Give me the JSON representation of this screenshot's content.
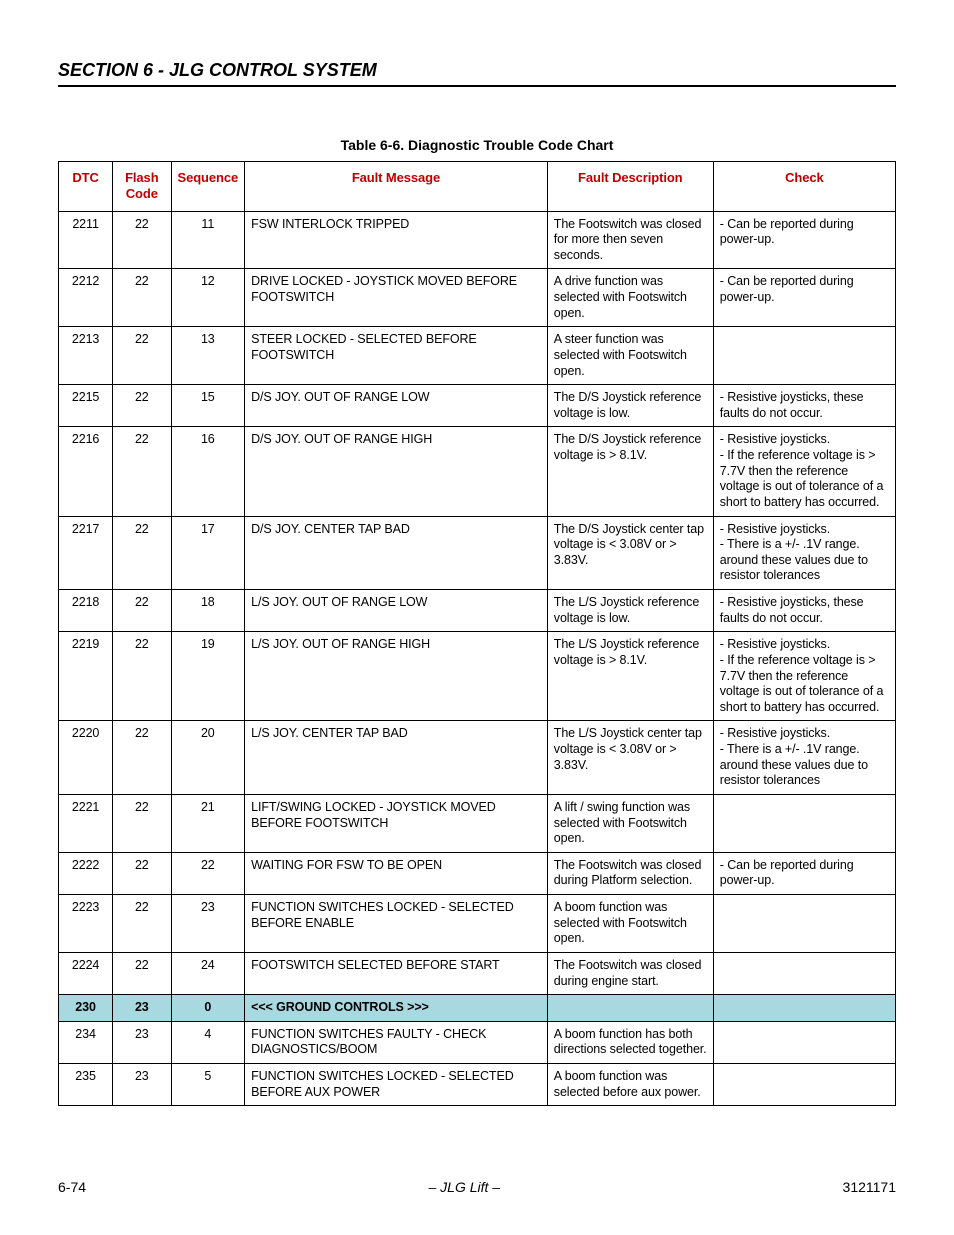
{
  "header": {
    "section_title": "SECTION 6 - JLG CONTROL SYSTEM"
  },
  "table": {
    "caption": "Table 6-6. Diagnostic Trouble Code Chart",
    "columns": {
      "dtc": "DTC",
      "flash": "Flash Code",
      "seq": "Sequence",
      "msg": "Fault Message",
      "desc": "Fault Description",
      "check": "Check"
    },
    "rows": [
      {
        "dtc": "2211",
        "flash": "22",
        "seq": "11",
        "msg": "FSW INTERLOCK TRIPPED",
        "desc": "The Footswitch was closed for more then seven seconds.",
        "check": "- Can be reported during power-up."
      },
      {
        "dtc": "2212",
        "flash": "22",
        "seq": "12",
        "msg": "DRIVE LOCKED - JOYSTICK MOVED BEFORE FOOTSWITCH",
        "desc": "A drive function was selected with Footswitch open.",
        "check": "- Can be reported during power-up."
      },
      {
        "dtc": "2213",
        "flash": "22",
        "seq": "13",
        "msg": "STEER LOCKED - SELECTED BEFORE FOOTSWITCH",
        "desc": "A steer function was selected with Footswitch open.",
        "check": ""
      },
      {
        "dtc": "2215",
        "flash": "22",
        "seq": "15",
        "msg": "D/S JOY. OUT OF RANGE LOW",
        "desc": "The D/S Joystick reference voltage is low.",
        "check": "- Resistive joysticks, these faults do not occur."
      },
      {
        "dtc": "2216",
        "flash": "22",
        "seq": "16",
        "msg": "D/S JOY. OUT OF RANGE HIGH",
        "desc": "The D/S Joystick reference voltage is > 8.1V.",
        "check": "- Resistive joysticks.\n- If the reference voltage is > 7.7V then the reference voltage is out of tolerance of a short to battery has occurred."
      },
      {
        "dtc": "2217",
        "flash": "22",
        "seq": "17",
        "msg": "D/S JOY. CENTER TAP BAD",
        "desc": "The D/S Joystick center tap voltage is < 3.08V or > 3.83V.",
        "check": "- Resistive joysticks.\n- There is a +/- .1V range. around these values due to resistor tolerances"
      },
      {
        "dtc": "2218",
        "flash": "22",
        "seq": "18",
        "msg": "L/S JOY. OUT OF RANGE LOW",
        "desc": "The L/S Joystick reference voltage is low.",
        "check": "- Resistive joysticks, these faults do not occur."
      },
      {
        "dtc": "2219",
        "flash": "22",
        "seq": "19",
        "msg": "L/S JOY. OUT OF RANGE HIGH",
        "desc": "The L/S Joystick reference voltage is > 8.1V.",
        "check": "- Resistive joysticks.\n- If the reference voltage is > 7.7V then the reference voltage is out of tolerance of a short to battery has occurred."
      },
      {
        "dtc": "2220",
        "flash": "22",
        "seq": "20",
        "msg": "L/S JOY. CENTER TAP BAD",
        "desc": "The L/S Joystick center tap voltage is < 3.08V or > 3.83V.",
        "check": "- Resistive joysticks.\n- There is a +/- .1V range. around these values due to resistor tolerances"
      },
      {
        "dtc": "2221",
        "flash": "22",
        "seq": "21",
        "msg": "LIFT/SWING LOCKED - JOYSTICK MOVED BEFORE FOOTSWITCH",
        "desc": "A lift / swing function was selected with Footswitch open.",
        "check": ""
      },
      {
        "dtc": "2222",
        "flash": "22",
        "seq": "22",
        "msg": "WAITING FOR FSW TO BE OPEN",
        "desc": "The Footswitch was closed during Platform selection.",
        "check": "- Can be reported during power-up."
      },
      {
        "dtc": "2223",
        "flash": "22",
        "seq": "23",
        "msg": "FUNCTION SWITCHES LOCKED - SELECTED BEFORE ENABLE",
        "desc": "A boom function was selected with Footswitch open.",
        "check": ""
      },
      {
        "dtc": "2224",
        "flash": "22",
        "seq": "24",
        "msg": "FOOTSWITCH SELECTED BEFORE START",
        "desc": "The Footswitch was closed during engine start.",
        "check": ""
      },
      {
        "section": true,
        "dtc": "230",
        "flash": "23",
        "seq": "0",
        "msg": "<<< GROUND CONTROLS >>>",
        "desc": "",
        "check": ""
      },
      {
        "dtc": "234",
        "flash": "23",
        "seq": "4",
        "msg": "FUNCTION SWITCHES FAULTY - CHECK DIAGNOSTICS/BOOM",
        "desc": "A boom function has both directions selected together.",
        "check": ""
      },
      {
        "dtc": "235",
        "flash": "23",
        "seq": "5",
        "msg": "FUNCTION SWITCHES LOCKED - SELECTED BEFORE AUX POWER",
        "desc": "A boom function was selected before aux power.",
        "check": ""
      }
    ]
  },
  "footer": {
    "page": "6-74",
    "center": "– JLG Lift –",
    "doc": "3121171"
  }
}
